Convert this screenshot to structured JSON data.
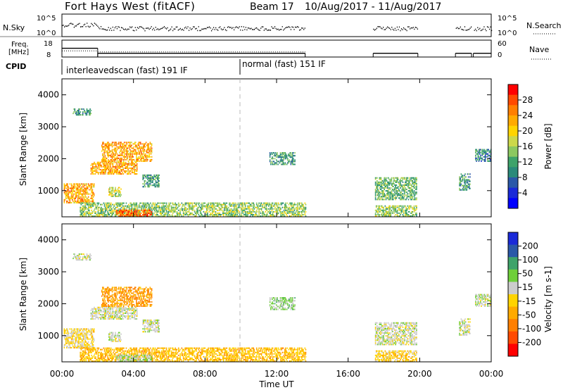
{
  "header": {
    "station": "Fort Hays West (fitACF)",
    "beam": "Beam 17",
    "date_range": "10/Aug/2017 - 11/Aug/2017"
  },
  "noise_panel": {
    "left_label": "N.Sky",
    "right_label": "N.Search",
    "left_ticks": [
      "10^5",
      "10^0"
    ],
    "right_ticks": [
      "10^5",
      "10^0"
    ]
  },
  "freq_panel": {
    "left_label_top": "Freq.",
    "left_label_bottom": "[MHz]",
    "right_label": "Nave",
    "left_ticks": [
      "18",
      "8"
    ],
    "right_ticks": [
      "60",
      "0"
    ]
  },
  "cpid": {
    "label": "CPID",
    "programs": [
      {
        "text": "interleavedscan (fast) 191 IF",
        "start_h": 0.0,
        "end_h": 10.0
      },
      {
        "text": "normal (fast) 151 IF",
        "start_h": 10.0,
        "end_h": 24.0
      }
    ]
  },
  "time_axis": {
    "label": "Time UT",
    "ticks": [
      "00:00",
      "04:00",
      "08:00",
      "12:00",
      "16:00",
      "20:00",
      "00:00"
    ],
    "tick_hours": [
      0,
      4,
      8,
      12,
      16,
      20,
      24
    ]
  },
  "power_panel": {
    "ylabel": "Slant Range [km]",
    "yticks": [
      1000,
      2000,
      3000,
      4000
    ],
    "colorbar_label": "Power [dB]",
    "colorbar_ticks": [
      "28",
      "24",
      "20",
      "16",
      "12",
      "8",
      "4"
    ],
    "colors": [
      "#ff0000",
      "#ff4a00",
      "#ff7f00",
      "#ffaa00",
      "#ffd400",
      "#ccd84a",
      "#8cc860",
      "#3ea36a",
      "#2a8a7a",
      "#2a58a8",
      "#1a2ad8",
      "#0000ff"
    ]
  },
  "velocity_panel": {
    "ylabel": "Slant Range [km]",
    "yticks": [
      1000,
      2000,
      3000,
      4000
    ],
    "colorbar_label": "Velocity [m s-1]",
    "colorbar_ticks": [
      "200",
      "100",
      "50",
      "15",
      "-15",
      "-50",
      "-100",
      "-200"
    ],
    "colors": [
      "#1a2ad8",
      "#2a58a8",
      "#3ea36a",
      "#6fcf3a",
      "#cccccc",
      "#ffd400",
      "#ffaa00",
      "#ff7f00",
      "#ff4a00",
      "#ff0000"
    ]
  },
  "chart_data": {
    "type": "heatmap",
    "x_range_hours": [
      0,
      24
    ],
    "y_range_km": [
      180,
      4500
    ],
    "data_gap_hours": [
      [
        13.6,
        17.4
      ],
      [
        19.9,
        22.0
      ],
      [
        22.9,
        23.0
      ]
    ],
    "scatter_regions": [
      {
        "t0": 0.1,
        "t1": 1.8,
        "r0": 600,
        "r1": 1200,
        "power_db": 22,
        "velocity": -20
      },
      {
        "t0": 0.6,
        "t1": 1.6,
        "r0": 3350,
        "r1": 3550,
        "power_db": 10,
        "velocity": 0
      },
      {
        "t0": 1.6,
        "t1": 4.2,
        "r0": 1500,
        "r1": 1900,
        "power_db": 22,
        "velocity": 0
      },
      {
        "t0": 2.2,
        "t1": 5.0,
        "r0": 1900,
        "r1": 2500,
        "power_db": 22,
        "velocity": -60
      },
      {
        "t0": 2.6,
        "t1": 3.3,
        "r0": 800,
        "r1": 1100,
        "power_db": 16,
        "velocity": 0
      },
      {
        "t0": 4.5,
        "t1": 5.4,
        "r0": 1100,
        "r1": 1500,
        "power_db": 10,
        "velocity": 0
      },
      {
        "t0": 1.0,
        "t1": 13.6,
        "r0": 180,
        "r1": 600,
        "power_db": 14,
        "velocity": -40
      },
      {
        "t0": 3.0,
        "t1": 5.0,
        "r0": 180,
        "r1": 400,
        "power_db": 26,
        "velocity": 10
      },
      {
        "t0": 11.6,
        "t1": 13.0,
        "r0": 1800,
        "r1": 2200,
        "power_db": 10,
        "velocity": 20
      },
      {
        "t0": 17.5,
        "t1": 19.8,
        "r0": 700,
        "r1": 1400,
        "power_db": 12,
        "velocity": 0
      },
      {
        "t0": 17.5,
        "t1": 19.8,
        "r0": 180,
        "r1": 500,
        "power_db": 14,
        "velocity": -30
      },
      {
        "t0": 22.2,
        "t1": 22.8,
        "r0": 1000,
        "r1": 1500,
        "power_db": 10,
        "velocity": 0
      },
      {
        "t0": 23.1,
        "t1": 24.0,
        "r0": 1900,
        "r1": 2300,
        "power_db": 8,
        "velocity": 0
      }
    ],
    "freq_mhz_by_hour": [
      [
        0,
        13.2
      ],
      [
        2.0,
        10.2
      ],
      [
        13.6,
        null
      ],
      [
        17.4,
        10.2
      ],
      [
        19.9,
        null
      ],
      [
        22.0,
        10.2
      ],
      [
        22.9,
        null
      ],
      [
        23.0,
        10.2
      ]
    ],
    "nave_by_hour": [
      [
        0,
        22
      ],
      [
        2.0,
        18
      ]
    ]
  }
}
